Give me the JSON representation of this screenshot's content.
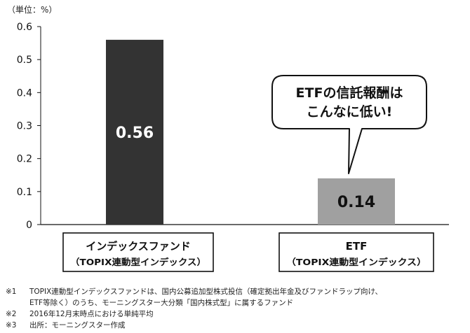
{
  "chart_data": {
    "type": "bar",
    "unit_label": "（単位：%）",
    "categories": [
      {
        "line1": "インデックスファンド",
        "line2": "（TOPIX連動型インデックス）"
      },
      {
        "line1": "ETF",
        "line2": "（TOPIX連動型インデックス）"
      }
    ],
    "values": [
      0.56,
      0.14
    ],
    "data_labels": [
      "0.56",
      "0.14"
    ],
    "bar_colors": [
      "#333333",
      "#a0a0a0"
    ],
    "ylim": [
      0,
      0.6
    ],
    "yticks": [
      "0",
      "0.1",
      "0.2",
      "0.3",
      "0.4",
      "0.5",
      "0.6"
    ],
    "grid": false,
    "callout": {
      "line1": "ETFの信託報酬は",
      "line2": "こんなに低い!"
    }
  },
  "notes": [
    {
      "mark": "※1",
      "text": "TOPIX連動型インデックスファンドは、国内公募追加型株式投信（確定拠出年金及びファンドラップ向け、",
      "cont": "ETF等除く）のうち、モーニングスター大分類「国内株式型」に属するファンド"
    },
    {
      "mark": "※2",
      "text": "2016年12月末時点における単純平均"
    },
    {
      "mark": "※3",
      "text": "出所：モーニングスター作成"
    }
  ]
}
